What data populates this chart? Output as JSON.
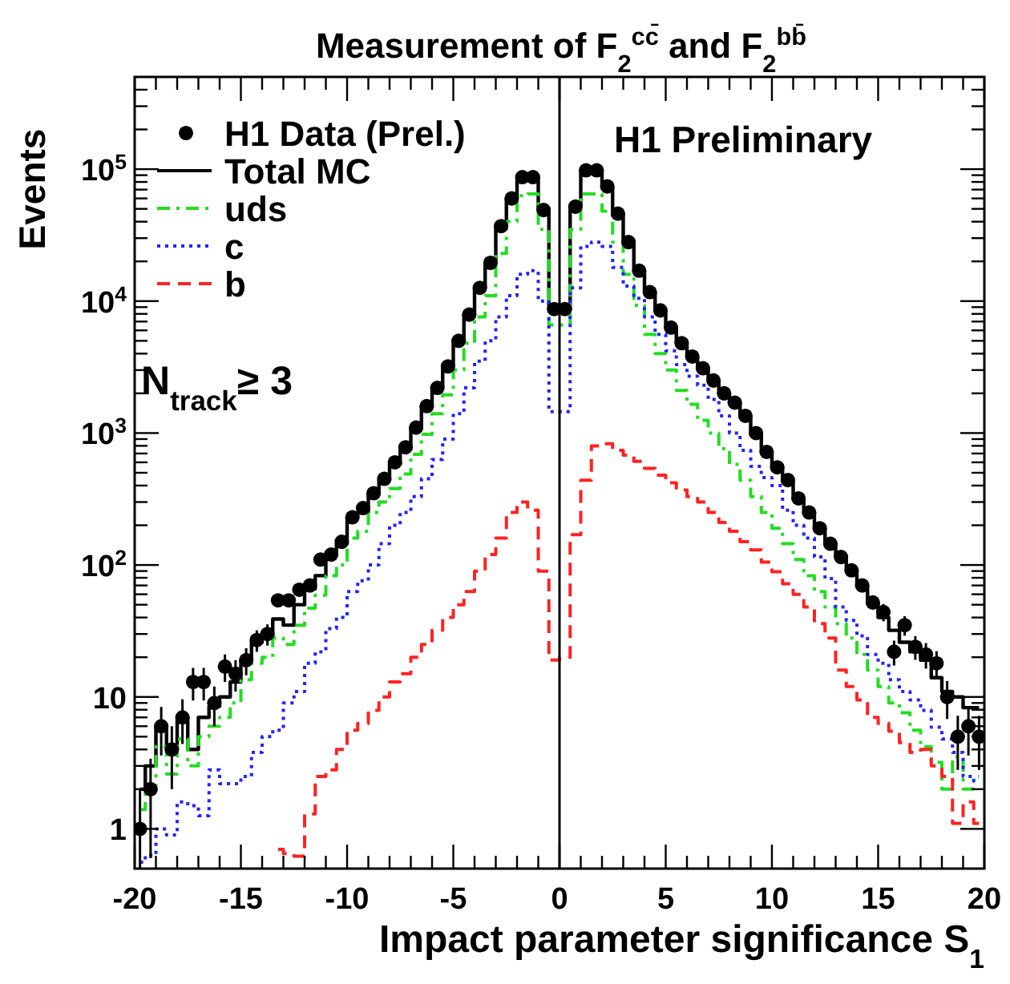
{
  "chart_data": {
    "type": "step",
    "title": "Measurement of F$_{2}$$^{cc̄}$ and F$_{2}$$^{bb̄}$",
    "xlabel": "Impact parameter significance S$_{1}$",
    "ylabel": "Events",
    "annotations": [
      "H1 Preliminary",
      "N$_{track}$≥ 3"
    ],
    "x": [
      -19.75,
      -19.25,
      -18.75,
      -18.25,
      -17.75,
      -17.25,
      -16.75,
      -16.25,
      -15.75,
      -15.25,
      -14.75,
      -14.25,
      -13.75,
      -13.25,
      -12.75,
      -12.25,
      -11.75,
      -11.25,
      -10.75,
      -10.25,
      -9.75,
      -9.25,
      -8.75,
      -8.25,
      -7.75,
      -7.25,
      -6.75,
      -6.25,
      -5.75,
      -5.25,
      -4.75,
      -4.25,
      -3.75,
      -3.25,
      -2.75,
      -2.25,
      -1.75,
      -1.25,
      -0.75,
      -0.25,
      0.25,
      0.75,
      1.25,
      1.75,
      2.25,
      2.75,
      3.25,
      3.75,
      4.25,
      4.75,
      5.25,
      5.75,
      6.25,
      6.75,
      7.25,
      7.75,
      8.25,
      8.75,
      9.25,
      9.75,
      10.25,
      10.75,
      11.25,
      11.75,
      12.25,
      12.75,
      13.25,
      13.75,
      14.25,
      14.75,
      15.25,
      15.75,
      16.25,
      16.75,
      17.25,
      17.75,
      18.25,
      18.75,
      19.25,
      19.75
    ],
    "series": [
      {
        "name": "H1 Data (Prel.)",
        "type": "scatter",
        "color": "#000000",
        "marker": "circle",
        "values": [
          1,
          2,
          6,
          4,
          7,
          13,
          13,
          9,
          17,
          15,
          19,
          27,
          30,
          54,
          54,
          65,
          70,
          110,
          120,
          150,
          230,
          270,
          350,
          450,
          600,
          780,
          1100,
          1600,
          2200,
          3200,
          5000,
          7900,
          12600,
          19500,
          37000,
          60000,
          87000,
          87000,
          49000,
          8700,
          8700,
          52000,
          98000,
          98000,
          74000,
          46000,
          28000,
          17000,
          11700,
          8500,
          6300,
          4800,
          3800,
          3100,
          2500,
          2000,
          1700,
          1350,
          1000,
          720,
          550,
          440,
          320,
          250,
          190,
          145,
          115,
          91,
          70,
          52,
          44,
          22,
          35,
          24,
          21,
          18,
          10,
          5,
          6,
          5
        ],
        "errors": [
          [
            0.5,
            2
          ],
          1.4,
          2.4,
          2,
          2.6,
          3.6,
          3.6,
          3,
          4,
          4,
          4.4,
          5,
          5.5,
          null,
          null,
          null,
          null,
          null,
          null,
          null,
          null,
          null,
          null,
          null,
          null,
          null,
          null,
          null,
          null,
          null,
          null,
          null,
          null,
          null,
          null,
          null,
          null,
          null,
          null,
          null,
          null,
          null,
          null,
          null,
          null,
          null,
          null,
          null,
          null,
          null,
          null,
          null,
          null,
          null,
          null,
          null,
          null,
          null,
          null,
          null,
          null,
          null,
          null,
          null,
          null,
          null,
          null,
          null,
          null,
          null,
          6.6,
          4.7,
          5.9,
          4.9,
          4.6,
          4.2,
          3.2,
          2.2,
          2.4,
          2.2
        ]
      },
      {
        "name": "Total MC",
        "color": "#000000",
        "line_style": "solid",
        "values": [
          2,
          3,
          6,
          4,
          7,
          4,
          7,
          8.5,
          10,
          13,
          19,
          26,
          29,
          39,
          35,
          50,
          66,
          83,
          120,
          145,
          230,
          250,
          350,
          440,
          580,
          760,
          1100,
          1600,
          2200,
          3200,
          5000,
          7900,
          12600,
          19500,
          37000,
          60000,
          87000,
          87000,
          49000,
          8700,
          8700,
          52000,
          98000,
          98000,
          74000,
          46000,
          28000,
          17000,
          11700,
          8500,
          6300,
          4800,
          3800,
          3100,
          2500,
          2000,
          1700,
          1350,
          1000,
          720,
          550,
          440,
          320,
          250,
          190,
          145,
          115,
          91,
          69,
          52,
          40,
          32,
          26,
          22,
          19,
          14,
          11,
          10,
          8.3,
          8.3
        ]
      },
      {
        "name": "uds",
        "color": "#22dd22",
        "line_style": "dashdot",
        "values": [
          1.4,
          2,
          4.2,
          2.6,
          4.8,
          3,
          5,
          6,
          7,
          9,
          13.5,
          18,
          20,
          28,
          25,
          35,
          47,
          59,
          83,
          100,
          160,
          180,
          250,
          300,
          380,
          490,
          690,
          980,
          1400,
          1950,
          3000,
          4800,
          7600,
          11000,
          23000,
          40000,
          63000,
          65000,
          35000,
          6600,
          6600,
          35000,
          65000,
          65000,
          48000,
          28000,
          16000,
          9300,
          5600,
          4000,
          3000,
          2100,
          1650,
          1250,
          1000,
          760,
          580,
          440,
          330,
          250,
          190,
          145,
          110,
          83,
          63,
          48,
          36,
          28,
          21,
          16,
          12,
          9,
          7.6,
          5.6,
          4.2,
          3.2,
          2,
          3.5,
          2,
          2.5
        ]
      },
      {
        "name": "c",
        "color": "#2222ff",
        "line_style": "dotted",
        "values": [
          0.56,
          0.63,
          1,
          0.9,
          1.6,
          1.5,
          1.26,
          2.8,
          2.2,
          2.2,
          2.5,
          3.8,
          5,
          5.6,
          9,
          11,
          18,
          22,
          33,
          40,
          63,
          76,
          100,
          145,
          200,
          250,
          330,
          450,
          630,
          900,
          1400,
          2200,
          3500,
          5000,
          7600,
          11000,
          16000,
          17000,
          10000,
          1450,
          1450,
          12600,
          26000,
          28000,
          26000,
          18000,
          13000,
          10500,
          7600,
          5600,
          4200,
          3300,
          2700,
          2300,
          1800,
          1350,
          1000,
          740,
          560,
          460,
          400,
          260,
          200,
          160,
          115,
          79,
          48,
          38,
          29,
          21,
          18,
          13.5,
          11,
          9.5,
          7.9,
          5.9,
          4.8,
          3.8,
          2.5,
          2.3
        ]
      },
      {
        "name": "b",
        "color": "#ff2222",
        "line_style": "dashed",
        "values": [
          null,
          null,
          null,
          null,
          null,
          null,
          null,
          null,
          null,
          null,
          null,
          null,
          null,
          0.7,
          0.65,
          0.62,
          1.3,
          2.5,
          2.8,
          4,
          5.6,
          6.3,
          7.9,
          10,
          13,
          15,
          20,
          25,
          32,
          40,
          50,
          63,
          90,
          120,
          160,
          250,
          300,
          260,
          90,
          19,
          20,
          170,
          440,
          800,
          830,
          740,
          680,
          610,
          540,
          480,
          420,
          370,
          330,
          300,
          250,
          210,
          180,
          150,
          130,
          105,
          89,
          72,
          60,
          48,
          36,
          28,
          16,
          12,
          9.5,
          7,
          6.3,
          5.5,
          4.5,
          3.8,
          4,
          3,
          2.5,
          1.1,
          1.6,
          1.1
        ]
      }
    ],
    "xlim": [
      -20,
      20
    ],
    "xticks": [
      -20,
      {
        "value": -19,
        "label": null
      },
      {
        "value": -18,
        "label": null
      },
      {
        "value": -17,
        "label": null
      },
      {
        "value": -16,
        "label": null
      },
      -15,
      {
        "value": -14,
        "label": null
      },
      {
        "value": -13,
        "label": null
      },
      {
        "value": -12,
        "label": null
      },
      {
        "value": -11,
        "label": null
      },
      -10,
      {
        "value": -9,
        "label": null
      },
      {
        "value": -8,
        "label": null
      },
      {
        "value": -7,
        "label": null
      },
      {
        "value": -6,
        "label": null
      },
      -5,
      {
        "value": -4,
        "label": null
      },
      {
        "value": -3,
        "label": null
      },
      {
        "value": -2,
        "label": null
      },
      {
        "value": -1,
        "label": null
      },
      0,
      {
        "value": 1,
        "label": null
      },
      {
        "value": 2,
        "label": null
      },
      {
        "value": 3,
        "label": null
      },
      {
        "value": 4,
        "label": null
      },
      5,
      {
        "value": 6,
        "label": null
      },
      {
        "value": 7,
        "label": null
      },
      {
        "value": 8,
        "label": null
      },
      {
        "value": 9,
        "label": null
      },
      10,
      {
        "value": 11,
        "label": null
      },
      {
        "value": 12,
        "label": null
      },
      {
        "value": 13,
        "label": null
      },
      {
        "value": 14,
        "label": null
      },
      15,
      {
        "value": 16,
        "label": null
      },
      {
        "value": 17,
        "label": null
      },
      {
        "value": 18,
        "label": null
      },
      {
        "value": 19,
        "label": null
      },
      20
    ],
    "ylim": [
      0.5,
      500000
    ],
    "yticks": [
      1,
      {
        "value": 2,
        "label": null
      },
      {
        "value": 3,
        "label": null
      },
      {
        "value": 4,
        "label": null
      },
      {
        "value": 5,
        "label": null
      },
      {
        "value": 6,
        "label": null
      },
      {
        "value": 7,
        "label": null
      },
      {
        "value": 8,
        "label": null
      },
      {
        "value": 9,
        "label": null
      },
      10,
      {
        "value": 20,
        "label": null
      },
      {
        "value": 30,
        "label": null
      },
      {
        "value": 40,
        "label": null
      },
      {
        "value": 50,
        "label": null
      },
      {
        "value": 60,
        "label": null
      },
      {
        "value": 70,
        "label": null
      },
      {
        "value": 80,
        "label": null
      },
      {
        "value": 90,
        "label": null
      },
      {
        "value": 100,
        "label": "10$^{2}$"
      },
      {
        "value": 200,
        "label": null
      },
      {
        "value": 300,
        "label": null
      },
      {
        "value": 400,
        "label": null
      },
      {
        "value": 500,
        "label": null
      },
      {
        "value": 600,
        "label": null
      },
      {
        "value": 700,
        "label": null
      },
      {
        "value": 800,
        "label": null
      },
      {
        "value": 900,
        "label": null
      },
      {
        "value": 1000,
        "label": "10$^{3}$"
      },
      {
        "value": 2000,
        "label": null
      },
      {
        "value": 3000,
        "label": null
      },
      {
        "value": 4000,
        "label": null
      },
      {
        "value": 5000,
        "label": null
      },
      {
        "value": 6000,
        "label": null
      },
      {
        "value": 7000,
        "label": null
      },
      {
        "value": 8000,
        "label": null
      },
      {
        "value": 9000,
        "label": null
      },
      {
        "value": 10000,
        "label": "10$^{4}$"
      },
      {
        "value": 20000,
        "label": null
      },
      {
        "value": 30000,
        "label": null
      },
      {
        "value": 40000,
        "label": null
      },
      {
        "value": 50000,
        "label": null
      },
      {
        "value": 60000,
        "label": null
      },
      {
        "value": 70000,
        "label": null
      },
      {
        "value": 80000,
        "label": null
      },
      {
        "value": 90000,
        "label": null
      },
      {
        "value": 100000,
        "label": "10$^{5}$"
      },
      {
        "value": 200000,
        "label": null
      },
      {
        "value": 300000,
        "label": null
      },
      {
        "value": 400000,
        "label": null
      }
    ],
    "log": true,
    "legend": "top left",
    "ref_lines": [
      {
        "axis": "x",
        "value": 0,
        "color": "#000000"
      }
    ]
  }
}
